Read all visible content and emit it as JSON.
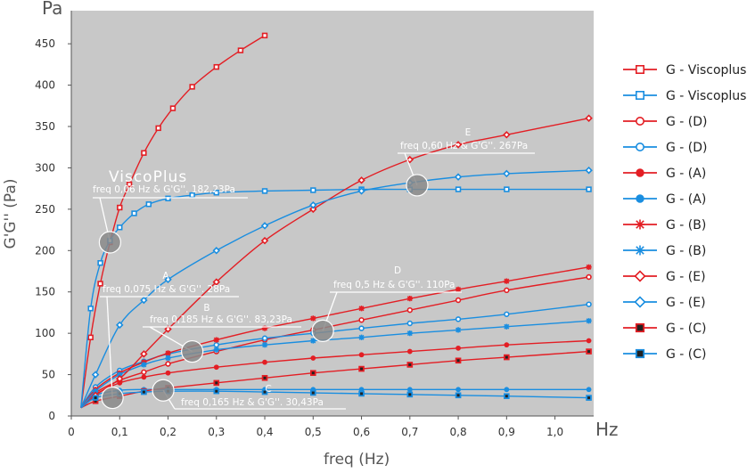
{
  "chart_data": {
    "type": "line",
    "title": "",
    "xlabel": "freq (Hz)",
    "ylabel": "G'G'' (Pa)",
    "x_unit": "Hz",
    "y_unit": "Pa",
    "xlim": [
      0,
      1.08
    ],
    "ylim": [
      0,
      490
    ],
    "x_ticks": [
      "0",
      "0,1",
      "0,2",
      "0,3",
      "0,4",
      "0,5",
      "0,6",
      "0,7",
      "0,8",
      "0,9",
      "1,0"
    ],
    "y_ticks": [
      "0",
      "50",
      "100",
      "150",
      "200",
      "250",
      "300",
      "350",
      "400",
      "450"
    ],
    "grid": false,
    "legend_position": "right",
    "series": [
      {
        "name": "G - Viscoplus",
        "color": "#e31e24",
        "marker": "square-open",
        "x": [
          0.02,
          0.04,
          0.06,
          0.08,
          0.1,
          0.12,
          0.15,
          0.18,
          0.21,
          0.25,
          0.3,
          0.35,
          0.4
        ],
        "y": [
          10,
          95,
          160,
          210,
          252,
          280,
          318,
          348,
          372,
          398,
          422,
          442,
          460
        ]
      },
      {
        "name": "G - Viscoplus",
        "color": "#1a8ee0",
        "marker": "square-open",
        "x": [
          0.02,
          0.04,
          0.06,
          0.08,
          0.1,
          0.13,
          0.16,
          0.2,
          0.25,
          0.3,
          0.4,
          0.5,
          0.6,
          0.7,
          0.8,
          0.9,
          1.07
        ],
        "y": [
          10,
          130,
          185,
          212,
          228,
          245,
          256,
          263,
          267,
          270,
          272,
          273,
          274,
          274,
          274,
          274,
          274
        ]
      },
      {
        "name": "G - (D)",
        "color": "#e31e24",
        "marker": "circle-open",
        "x": [
          0.02,
          0.05,
          0.1,
          0.15,
          0.2,
          0.3,
          0.4,
          0.5,
          0.6,
          0.7,
          0.8,
          0.9,
          1.07
        ],
        "y": [
          10,
          28,
          43,
          53,
          63,
          78,
          92,
          104,
          116,
          128,
          140,
          152,
          168
        ]
      },
      {
        "name": "G - (D)",
        "color": "#1a8ee0",
        "marker": "circle-open",
        "x": [
          0.02,
          0.05,
          0.1,
          0.15,
          0.2,
          0.3,
          0.4,
          0.5,
          0.6,
          0.7,
          0.8,
          0.9,
          1.07
        ],
        "y": [
          10,
          35,
          55,
          66,
          75,
          86,
          94,
          100,
          106,
          112,
          117,
          123,
          135
        ]
      },
      {
        "name": "G - (A)",
        "color": "#e31e24",
        "marker": "circle-filled",
        "x": [
          0.02,
          0.05,
          0.1,
          0.15,
          0.2,
          0.3,
          0.4,
          0.5,
          0.6,
          0.7,
          0.8,
          0.9,
          1.07
        ],
        "y": [
          10,
          26,
          40,
          47,
          52,
          59,
          65,
          70,
          74,
          78,
          82,
          86,
          91
        ]
      },
      {
        "name": "G - (A)",
        "color": "#1a8ee0",
        "marker": "circle-filled",
        "x": [
          0.02,
          0.05,
          0.1,
          0.15,
          0.2,
          0.3,
          0.4,
          0.5,
          0.6,
          0.7,
          0.8,
          0.9,
          1.07
        ],
        "y": [
          10,
          25,
          31,
          32,
          32,
          32,
          32,
          32,
          32,
          32,
          32,
          32,
          32
        ]
      },
      {
        "name": "G - (B)",
        "color": "#e31e24",
        "marker": "star",
        "x": [
          0.02,
          0.05,
          0.1,
          0.15,
          0.2,
          0.3,
          0.4,
          0.5,
          0.6,
          0.7,
          0.8,
          0.9,
          1.07
        ],
        "y": [
          10,
          32,
          52,
          65,
          76,
          92,
          106,
          118,
          130,
          142,
          153,
          163,
          180
        ]
      },
      {
        "name": "G - (B)",
        "color": "#1a8ee0",
        "marker": "star",
        "x": [
          0.02,
          0.05,
          0.1,
          0.15,
          0.2,
          0.3,
          0.4,
          0.5,
          0.6,
          0.7,
          0.8,
          0.9,
          1.07
        ],
        "y": [
          10,
          30,
          50,
          62,
          70,
          80,
          86,
          91,
          95,
          100,
          104,
          108,
          115
        ]
      },
      {
        "name": "G - (E)",
        "color": "#e31e24",
        "marker": "diamond-open",
        "x": [
          0.02,
          0.05,
          0.1,
          0.15,
          0.2,
          0.3,
          0.4,
          0.5,
          0.6,
          0.7,
          0.8,
          0.9,
          1.07
        ],
        "y": [
          10,
          25,
          45,
          75,
          105,
          162,
          212,
          250,
          285,
          310,
          328,
          340,
          360
        ]
      },
      {
        "name": "G - (E)",
        "color": "#1a8ee0",
        "marker": "diamond-open",
        "x": [
          0.02,
          0.05,
          0.1,
          0.15,
          0.2,
          0.3,
          0.4,
          0.5,
          0.6,
          0.7,
          0.8,
          0.9,
          1.07
        ],
        "y": [
          10,
          50,
          110,
          140,
          165,
          200,
          230,
          255,
          272,
          282,
          289,
          293,
          297
        ]
      },
      {
        "name": "G - (C)",
        "color": "#e31e24",
        "marker": "square-filled",
        "x": [
          0.02,
          0.05,
          0.1,
          0.15,
          0.2,
          0.3,
          0.4,
          0.5,
          0.6,
          0.7,
          0.8,
          0.9,
          1.07
        ],
        "y": [
          10,
          18,
          24,
          30,
          34,
          40,
          46,
          52,
          57,
          62,
          67,
          71,
          78
        ]
      },
      {
        "name": "G - (C)",
        "color": "#1a8ee0",
        "marker": "square-filled",
        "x": [
          0.02,
          0.05,
          0.1,
          0.15,
          0.2,
          0.3,
          0.4,
          0.5,
          0.6,
          0.7,
          0.8,
          0.9,
          1.07
        ],
        "y": [
          10,
          22,
          27,
          29,
          30,
          30,
          29,
          28,
          27,
          26,
          25,
          24,
          22
        ]
      }
    ],
    "annotations": [
      {
        "label": "",
        "text": "freq 0,06 Hz & G'G''. 182,23Pa",
        "point": [
          0.08,
          210
        ]
      },
      {
        "label": "A",
        "text": "freq 0,075 Hz & G'G''. 28Pa",
        "point": [
          0.085,
          22
        ]
      },
      {
        "label": "B",
        "text": "freq 0,185 Hz & G'G''. 83,23Pa",
        "point": [
          0.25,
          78
        ]
      },
      {
        "label": "C",
        "text": "freq 0,165 Hz & G'G''. 30,43Pa",
        "point": [
          0.19,
          31
        ]
      },
      {
        "label": "D",
        "text": "freq 0,5 Hz & G'G''. 110Pa",
        "point": [
          0.52,
          103
        ]
      },
      {
        "label": "E",
        "text": "freq 0,60 Hz & G'G''. 267Pa",
        "point": [
          0.715,
          279
        ]
      }
    ],
    "brand_text": "ViscoPlus"
  }
}
